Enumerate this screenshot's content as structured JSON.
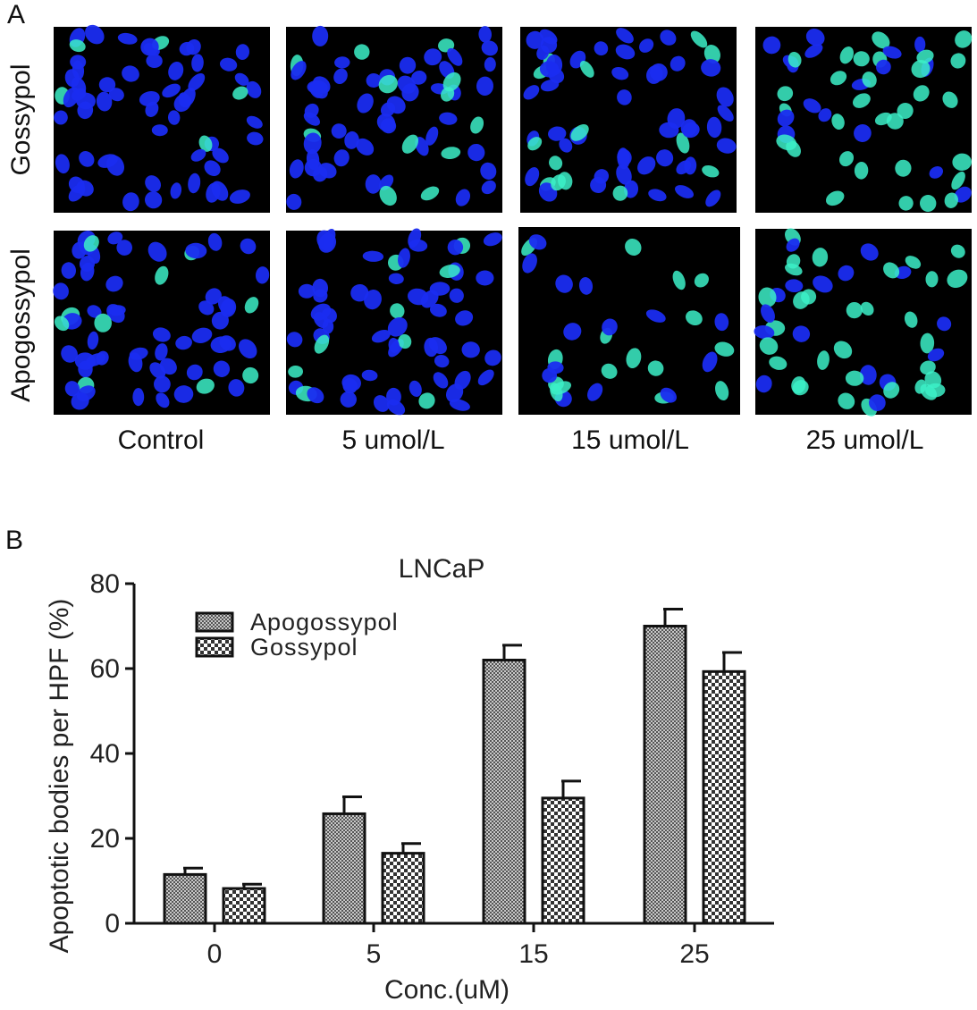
{
  "figure": {
    "panel_a_letter": "A",
    "panel_b_letter": "B",
    "row_labels": [
      "Gossypol",
      "Apogossypol"
    ],
    "column_labels": [
      "Control",
      "5 umol/L",
      "15 umol/L",
      "25 umol/L"
    ]
  },
  "colors": {
    "nuclei": "#1a2cf0",
    "apoptotic": "#3cf0c8",
    "background": "#000000"
  },
  "micrographs": [
    {
      "row": 0,
      "col": 0,
      "green": 0.1
    },
    {
      "row": 0,
      "col": 1,
      "green": 0.2
    },
    {
      "row": 0,
      "col": 2,
      "green": 0.35
    },
    {
      "row": 0,
      "col": 3,
      "green": 0.6
    },
    {
      "row": 1,
      "col": 0,
      "green": 0.12
    },
    {
      "row": 1,
      "col": 1,
      "green": 0.22
    },
    {
      "row": 1,
      "col": 2,
      "green": 0.55
    },
    {
      "row": 1,
      "col": 3,
      "green": 0.65
    }
  ],
  "chart_data": {
    "type": "bar",
    "title": "LNCaP",
    "xlabel": "Conc.(uM)",
    "ylabel": "Apoptotic bodies per HPF (%)",
    "categories": [
      "0",
      "5",
      "15",
      "25"
    ],
    "ylim": [
      0,
      80
    ],
    "yticks": [
      "0",
      "20",
      "40",
      "60",
      "80"
    ],
    "legend_position": "top-left",
    "grid": false,
    "series": [
      {
        "name": "Apogossypol",
        "pattern": "fine",
        "values": [
          11.5,
          25.8,
          62.0,
          70.0
        ],
        "errors": [
          1.5,
          4.0,
          3.5,
          4.0
        ]
      },
      {
        "name": "Gossypol",
        "pattern": "checker",
        "values": [
          8.2,
          16.5,
          29.5,
          59.3
        ],
        "errors": [
          1.0,
          2.3,
          4.0,
          4.5
        ]
      }
    ]
  }
}
